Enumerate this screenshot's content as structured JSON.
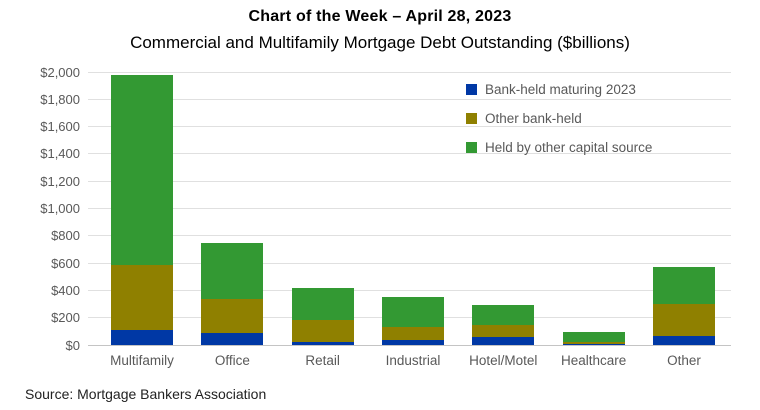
{
  "header": {
    "title": "Chart of the Week – April 28, 2023",
    "subtitle": "Commercial and Multifamily Mortgage Debt Outstanding ($billions)"
  },
  "chart_data": {
    "type": "bar",
    "stacked": true,
    "title": "Chart of the Week – April 28, 2023",
    "subtitle": "Commercial and Multifamily Mortgage Debt Outstanding ($billions)",
    "categories": [
      "Multifamily",
      "Office",
      "Retail",
      "Industrial",
      "Hotel/Motel",
      "Healthcare",
      "Other"
    ],
    "series": [
      {
        "name": "Bank-held maturing 2023",
        "color": "#0038A5",
        "values": [
          110,
          90,
          25,
          35,
          55,
          5,
          65
        ]
      },
      {
        "name": "Other bank-held",
        "color": "#8F8000",
        "values": [
          475,
          245,
          155,
          100,
          95,
          15,
          235
        ]
      },
      {
        "name": "Held by other capital source",
        "color": "#339933",
        "values": [
          1395,
          410,
          240,
          220,
          145,
          75,
          275
        ]
      }
    ],
    "totals": [
      1980,
      745,
      420,
      355,
      295,
      95,
      575
    ],
    "ylim": [
      0,
      2000
    ],
    "ytick_step": 200,
    "ytick_labels": [
      "$0",
      "$200",
      "$400",
      "$600",
      "$800",
      "$1,000",
      "$1,200",
      "$1,400",
      "$1,600",
      "$1,800",
      "$2,000"
    ],
    "grid": true,
    "legend_position": "top-right"
  },
  "footer": {
    "source": "Source: Mortgage Bankers Association"
  }
}
